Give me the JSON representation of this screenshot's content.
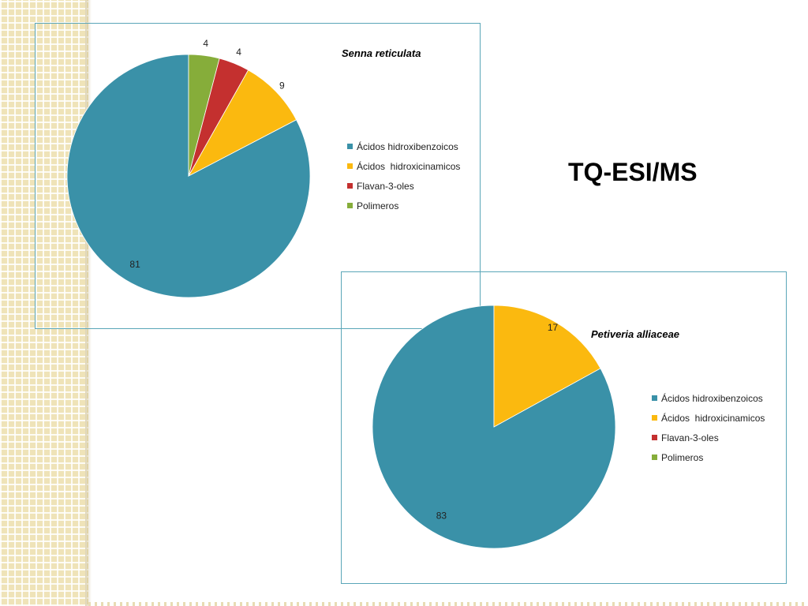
{
  "slide": {
    "title": "TQ-ESI/MS"
  },
  "colors": {
    "hidroxibenzoicos": "#3a91a8",
    "hidroxicinamicos": "#fbb90f",
    "flavanoles": "#c4302f",
    "polimeros": "#86ad3a",
    "frame": "#5aa6b8"
  },
  "chart_data": [
    {
      "type": "pie",
      "title": "Senna reticulata",
      "categories": [
        "Ácidos hidroxibenzoicos",
        "Ácidos  hidroxicinamicos",
        "Flavan-3-oles",
        "Polimeros"
      ],
      "values": [
        81,
        9,
        4,
        4
      ],
      "data_labels": [
        "81",
        "9",
        "4",
        "4"
      ],
      "legend_position": "right"
    },
    {
      "type": "pie",
      "title": "Petiveria alliaceae",
      "categories": [
        "Ácidos hidroxibenzoicos",
        "Ácidos  hidroxicinamicos",
        "Flavan-3-oles",
        "Polimeros"
      ],
      "values": [
        83,
        17,
        0,
        0
      ],
      "data_labels": [
        "83",
        "17",
        "",
        ""
      ],
      "legend_position": "right"
    }
  ]
}
